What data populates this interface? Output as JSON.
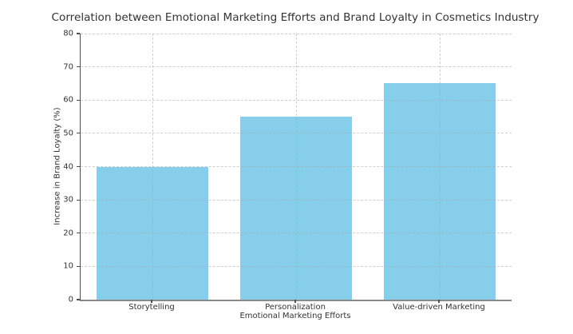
{
  "chart_data": {
    "type": "bar",
    "title": "Correlation between Emotional Marketing Efforts and Brand Loyalty in Cosmetics Industry",
    "xlabel": "Emotional Marketing Efforts",
    "ylabel": "Increase in Brand Loyalty (%)",
    "categories": [
      "Storytelling",
      "Personalization",
      "Value-driven Marketing"
    ],
    "values": [
      40,
      55,
      65
    ],
    "ylim": [
      0,
      80
    ],
    "yticks": [
      0,
      10,
      20,
      30,
      40,
      50,
      60,
      70,
      80
    ],
    "grid": true,
    "grid_style": "dashed",
    "legend": "none",
    "bar_color": "#87CEEB",
    "grid_color": "#d9d9d9",
    "text_color": "#333333",
    "spine_color": "#4f4f4f",
    "background_color": "#ffffff"
  }
}
